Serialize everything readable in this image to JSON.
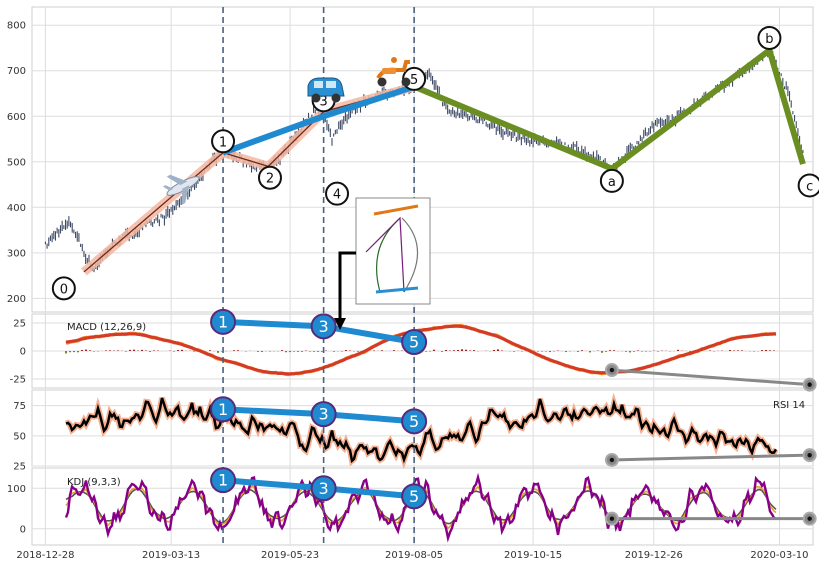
{
  "chart_data": {
    "type": "line",
    "colors": {
      "price": "#3d4a66",
      "wave_impulse_sub": "#f4b6a0",
      "wave_major": "#1f8ad0",
      "wave_correction": "#6b8e23",
      "divergence": "#888888",
      "vline": "#4a6080",
      "macd": "#f08018",
      "macd_signal": "#d43a2a",
      "hist_pos": "#a52222",
      "hist_neg": "#6b8e23",
      "rsi": "#000000",
      "rsi_glow": "#f4b090",
      "k": "#e8a030",
      "d": "#555555",
      "j": "#880088"
    },
    "x_axis": {
      "ticks": [
        "2018-12-28",
        "2019-03-13",
        "2019-05-23",
        "2019-08-05",
        "2019-10-15",
        "2019-12-26",
        "2020-03-10"
      ],
      "start": "2018-12-20",
      "end": "2020-03-30"
    },
    "vertical_lines": [
      "2019-04-13",
      "2019-06-12",
      "2019-08-05"
    ],
    "price": {
      "ylim": [
        170,
        840
      ],
      "yticks": [
        200,
        300,
        400,
        500,
        600,
        700,
        800
      ],
      "path": [
        [
          "2018-12-28",
          315
        ],
        [
          "2019-01-05",
          350
        ],
        [
          "2019-01-12",
          365
        ],
        [
          "2019-01-18",
          320
        ],
        [
          "2019-01-22",
          285
        ],
        [
          "2019-01-26",
          265
        ],
        [
          "2019-02-02",
          300
        ],
        [
          "2019-02-10",
          330
        ],
        [
          "2019-02-20",
          345
        ],
        [
          "2019-03-01",
          365
        ],
        [
          "2019-03-10",
          380
        ],
        [
          "2019-03-20",
          420
        ],
        [
          "2019-03-28",
          455
        ],
        [
          "2019-04-05",
          495
        ],
        [
          "2019-04-13",
          525
        ],
        [
          "2019-04-22",
          505
        ],
        [
          "2019-04-30",
          495
        ],
        [
          "2019-05-08",
          485
        ],
        [
          "2019-05-16",
          500
        ],
        [
          "2019-05-24",
          545
        ],
        [
          "2019-06-01",
          585
        ],
        [
          "2019-06-08",
          620
        ],
        [
          "2019-06-12",
          600
        ],
        [
          "2019-06-17",
          550
        ],
        [
          "2019-06-22",
          585
        ],
        [
          "2019-07-01",
          620
        ],
        [
          "2019-07-10",
          640
        ],
        [
          "2019-07-20",
          650
        ],
        [
          "2019-08-05",
          670
        ],
        [
          "2019-08-15",
          690
        ],
        [
          "2019-08-25",
          610
        ],
        [
          "2019-09-10",
          600
        ],
        [
          "2019-09-25",
          570
        ],
        [
          "2019-10-10",
          550
        ],
        [
          "2019-10-25",
          540
        ],
        [
          "2019-11-10",
          530
        ],
        [
          "2019-11-25",
          500
        ],
        [
          "2019-12-01",
          480
        ],
        [
          "2019-12-10",
          520
        ],
        [
          "2019-12-25",
          575
        ],
        [
          "2020-01-10",
          600
        ],
        [
          "2020-01-25",
          640
        ],
        [
          "2020-02-10",
          680
        ],
        [
          "2020-02-25",
          715
        ],
        [
          "2020-03-04",
          745
        ],
        [
          "2020-03-10",
          700
        ],
        [
          "2020-03-16",
          640
        ],
        [
          "2020-03-24",
          520
        ]
      ],
      "waves": {
        "sub": [
          [
            "2019-01-20",
            258
          ],
          [
            "2019-04-13",
            520
          ],
          [
            "2019-05-10",
            490
          ],
          [
            "2019-06-12",
            610
          ],
          [
            "2019-08-05",
            665
          ]
        ],
        "major": [
          [
            "2019-04-13",
            520
          ],
          [
            "2019-06-12",
            600
          ],
          [
            "2019-08-05",
            665
          ]
        ],
        "correction": [
          [
            "2019-08-05",
            665
          ],
          [
            "2019-12-01",
            485
          ],
          [
            "2020-03-04",
            745
          ],
          [
            "2020-03-24",
            495
          ]
        ]
      },
      "markers": [
        {
          "label": "0",
          "date": "2019-01-08",
          "value": 222
        },
        {
          "label": "1",
          "date": "2019-04-13",
          "value": 545
        },
        {
          "label": "2",
          "date": "2019-05-11",
          "value": 465
        },
        {
          "label": "3",
          "date": "2019-06-12",
          "value": 635
        },
        {
          "label": "4",
          "date": "2019-06-20",
          "value": 430
        },
        {
          "label": "5",
          "date": "2019-08-05",
          "value": 682
        },
        {
          "label": "a",
          "date": "2019-12-01",
          "value": 458
        },
        {
          "label": "b",
          "date": "2020-03-04",
          "value": 772
        },
        {
          "label": "c",
          "date": "2020-03-28",
          "value": 448
        }
      ]
    },
    "macd": {
      "label": "MACD (12,26,9)",
      "ylim": [
        -33,
        33
      ],
      "yticks": [
        25,
        0,
        -25
      ],
      "markers": [
        {
          "label": "1",
          "date": "2019-04-13",
          "value": 26
        },
        {
          "label": "3",
          "date": "2019-06-12",
          "value": 22
        },
        {
          "label": "5",
          "date": "2019-08-05",
          "value": 8
        }
      ],
      "divergence": [
        [
          "2019-12-01",
          -17
        ],
        [
          "2020-03-28",
          -30
        ]
      ]
    },
    "rsi": {
      "label": "RSI 14",
      "ylim": [
        25,
        88
      ],
      "yticks": [
        75,
        50,
        25
      ],
      "markers": [
        {
          "label": "1",
          "date": "2019-04-13",
          "value": 72
        },
        {
          "label": "3",
          "date": "2019-06-12",
          "value": 68
        },
        {
          "label": "5",
          "date": "2019-08-05",
          "value": 62
        }
      ],
      "divergence": [
        [
          "2019-12-01",
          30
        ],
        [
          "2020-03-28",
          34
        ]
      ]
    },
    "kdj": {
      "label": "KDJ (9,3,3)",
      "ylim": [
        -40,
        150
      ],
      "yticks": [
        100,
        0
      ],
      "markers": [
        {
          "label": "1",
          "date": "2019-04-13",
          "value": 120
        },
        {
          "label": "3",
          "date": "2019-06-12",
          "value": 100
        },
        {
          "label": "5",
          "date": "2019-08-05",
          "value": 80
        }
      ],
      "divergence": [
        [
          "2019-12-01",
          25
        ],
        [
          "2020-03-28",
          25
        ]
      ]
    }
  }
}
